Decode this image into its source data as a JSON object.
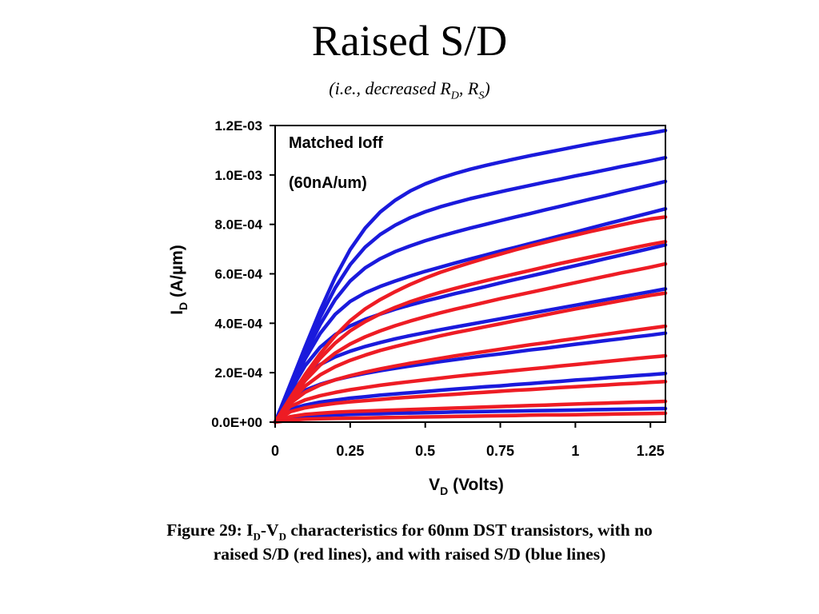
{
  "slide": {
    "title": "Raised S/D",
    "subtitle_prefix": "(i.e., decreased R",
    "subtitle_sub1": "D",
    "subtitle_mid": ", R",
    "subtitle_sub2": "S",
    "subtitle_suffix": ")"
  },
  "caption": {
    "p1": "Figure 29: I",
    "s1": "D",
    "p2": "-V",
    "s2": "D",
    "p3": " characteristics for 60nm DST transistors, with no raised S/D (red lines), and with raised S/D (blue lines)"
  },
  "colors": {
    "blue": "#1a1adc",
    "red": "#ee1c24"
  },
  "chart_data": {
    "type": "line",
    "xlabel": "V",
    "xlabel_sub": "D",
    "xlabel_suffix": " (Volts)",
    "ylabel": "I",
    "ylabel_sub": "D",
    "ylabel_suffix": " (A/µm)",
    "xlim": [
      0,
      1.3
    ],
    "ylim": [
      0,
      0.0012
    ],
    "x_ticks": [
      {
        "v": 0,
        "label": "0"
      },
      {
        "v": 0.25,
        "label": "0.25"
      },
      {
        "v": 0.5,
        "label": "0.5"
      },
      {
        "v": 0.75,
        "label": "0.75"
      },
      {
        "v": 1,
        "label": "1"
      },
      {
        "v": 1.25,
        "label": "1.25"
      }
    ],
    "y_ticks": [
      {
        "v": 0,
        "label": "0.0E+00"
      },
      {
        "v": 0.0002,
        "label": "2.0E-04"
      },
      {
        "v": 0.0004,
        "label": "4.0E-04"
      },
      {
        "v": 0.0006,
        "label": "6.0E-04"
      },
      {
        "v": 0.0008,
        "label": "8.0E-04"
      },
      {
        "v": 0.001,
        "label": "1.0E-03"
      },
      {
        "v": 0.0012,
        "label": "1.2E-03"
      }
    ],
    "annotations": [
      "Matched Ioff",
      "(60nA/um)"
    ],
    "x": [
      0,
      0.05,
      0.1,
      0.15,
      0.2,
      0.25,
      0.3,
      0.35,
      0.4,
      0.45,
      0.5,
      0.55,
      0.6,
      0.65,
      0.7,
      0.75,
      0.8,
      0.85,
      0.9,
      0.95,
      1.0,
      1.05,
      1.1,
      1.15,
      1.2,
      1.25,
      1.3
    ],
    "series": [
      {
        "group": "raised S/D",
        "color": "blue",
        "values": [
          0,
          0.000152,
          0.000304,
          0.000452,
          0.000586,
          0.000698,
          0.000785,
          0.00085,
          0.000898,
          0.000935,
          0.000964,
          0.000987,
          0.001006,
          0.001023,
          0.001038,
          0.001052,
          0.001065,
          0.001078,
          0.00109,
          0.001102,
          0.001114,
          0.001126,
          0.001137,
          0.001148,
          0.001159,
          0.001169,
          0.00118
        ]
      },
      {
        "group": "raised S/D",
        "color": "blue",
        "values": [
          0,
          0.000147,
          0.00029,
          0.000425,
          0.000543,
          0.000637,
          0.000708,
          0.000759,
          0.000797,
          0.000827,
          0.000851,
          0.000871,
          0.000888,
          0.000904,
          0.000918,
          0.000932,
          0.000945,
          0.000958,
          0.000971,
          0.000983,
          0.000996,
          0.001008,
          0.00102,
          0.001033,
          0.001045,
          0.001057,
          0.00107
        ]
      },
      {
        "group": "raised S/D",
        "color": "blue",
        "values": [
          0,
          0.000141,
          0.000275,
          0.000395,
          0.000496,
          0.000571,
          0.000624,
          0.000661,
          0.00069,
          0.000713,
          0.000734,
          0.000752,
          0.000769,
          0.000785,
          0.0008,
          0.000815,
          0.00083,
          0.000844,
          0.000859,
          0.000873,
          0.000888,
          0.000902,
          0.000916,
          0.000931,
          0.000945,
          0.000959,
          0.000974
        ]
      },
      {
        "group": "raised S/D",
        "color": "blue",
        "values": [
          0,
          0.000134,
          0.000256,
          0.000359,
          0.000436,
          0.000488,
          0.000523,
          0.000549,
          0.000571,
          0.000591,
          0.00061,
          0.000627,
          0.000644,
          0.00066,
          0.000676,
          0.000692,
          0.000707,
          0.000723,
          0.000738,
          0.000754,
          0.000769,
          0.000785,
          0.000801,
          0.000816,
          0.000832,
          0.000847,
          0.000863
        ]
      },
      {
        "group": "raised S/D",
        "color": "blue",
        "values": [
          0,
          0.000125,
          0.000228,
          0.000303,
          0.000354,
          0.000389,
          0.000416,
          0.000437,
          0.000457,
          0.000474,
          0.00049,
          0.000505,
          0.00052,
          0.000534,
          0.000548,
          0.000563,
          0.000577,
          0.000591,
          0.000605,
          0.000619,
          0.000633,
          0.000647,
          0.000661,
          0.000675,
          0.000689,
          0.000703,
          0.000717
        ]
      },
      {
        "group": "raised S/D",
        "color": "blue",
        "values": [
          0,
          0.000111,
          0.000187,
          0.000233,
          0.000264,
          0.000287,
          0.000306,
          0.000322,
          0.000337,
          0.00035,
          0.000362,
          0.000374,
          0.000385,
          0.000396,
          0.000407,
          0.000418,
          0.000429,
          0.00044,
          0.000451,
          0.000462,
          0.000473,
          0.000484,
          0.000495,
          0.000506,
          0.000517,
          0.000528,
          0.000539
        ]
      },
      {
        "group": "raised S/D",
        "color": "blue",
        "values": [
          0,
          8.7e-05,
          0.000129,
          0.000153,
          0.000171,
          0.000185,
          0.000197,
          0.000208,
          0.000218,
          0.000227,
          0.000236,
          0.000245,
          0.000253,
          0.000261,
          0.000269,
          0.000276,
          0.000284,
          0.000292,
          0.000299,
          0.000307,
          0.000315,
          0.000322,
          0.00033,
          0.000337,
          0.000345,
          0.000352,
          0.00036
        ]
      },
      {
        "group": "raised S/D",
        "color": "blue",
        "values": [
          0,
          5.2e-05,
          6.9e-05,
          8.1e-05,
          8.9e-05,
          9.7e-05,
          0.000103,
          0.000109,
          0.000114,
          0.000119,
          0.000124,
          0.000129,
          0.000134,
          0.000138,
          0.000143,
          0.000147,
          0.000152,
          0.000156,
          0.000161,
          0.000165,
          0.00017,
          0.000174,
          0.000179,
          0.000183,
          0.000188,
          0.000192,
          0.000197
        ]
      },
      {
        "group": "raised S/D",
        "color": "blue",
        "values": [
          0,
          1.8e-05,
          2.4e-05,
          2.7e-05,
          2.9e-05,
          3.1e-05,
          3.3e-05,
          3.4e-05,
          3.6e-05,
          3.7e-05,
          3.8e-05,
          3.9e-05,
          4.1e-05,
          4.2e-05,
          4.3e-05,
          4.4e-05,
          4.5e-05,
          4.6e-05,
          4.7e-05,
          4.8e-05,
          4.9e-05,
          5e-05,
          5.1e-05,
          5.2e-05,
          5.3e-05,
          5.4e-05,
          5.5e-05
        ]
      },
      {
        "group": "no raised S/D",
        "color": "red",
        "values": [
          0,
          9.8e-05,
          0.000192,
          0.000277,
          0.000349,
          0.00041,
          0.000458,
          0.000496,
          0.000528,
          0.000557,
          0.000583,
          0.000606,
          0.000626,
          0.000645,
          0.000663,
          0.00068,
          0.000697,
          0.000713,
          0.000728,
          0.000743,
          0.000757,
          0.000771,
          0.000784,
          0.000797,
          0.00081,
          0.000822,
          0.00083
        ]
      },
      {
        "group": "no raised S/D",
        "color": "red",
        "values": [
          0,
          9.5e-05,
          0.000182,
          0.000258,
          0.00032,
          0.000369,
          0.000407,
          0.000438,
          0.000464,
          0.000487,
          0.000507,
          0.000525,
          0.000541,
          0.000557,
          0.000572,
          0.000586,
          0.0006,
          0.000614,
          0.000628,
          0.000642,
          0.000655,
          0.000668,
          0.000681,
          0.000694,
          0.000707,
          0.000719,
          0.00073
        ]
      },
      {
        "group": "no raised S/D",
        "color": "red",
        "values": [
          0,
          9e-05,
          0.000168,
          0.000231,
          0.000279,
          0.000316,
          0.000345,
          0.000369,
          0.00039,
          0.000409,
          0.000426,
          0.000442,
          0.000457,
          0.000471,
          0.000485,
          0.000499,
          0.000512,
          0.000525,
          0.000538,
          0.000551,
          0.000564,
          0.000577,
          0.00059,
          0.000603,
          0.000615,
          0.000627,
          0.00064
        ]
      },
      {
        "group": "no raised S/D",
        "color": "red",
        "values": [
          0,
          8.4e-05,
          0.000146,
          0.000191,
          0.000224,
          0.00025,
          0.000271,
          0.00029,
          0.000306,
          0.000321,
          0.000335,
          0.000349,
          0.000362,
          0.000374,
          0.000386,
          0.000398,
          0.00041,
          0.000422,
          0.000434,
          0.000446,
          0.000458,
          0.000469,
          0.00048,
          0.000491,
          0.000502,
          0.000513,
          0.000522
        ]
      },
      {
        "group": "no raised S/D",
        "color": "red",
        "values": [
          0,
          7.6e-05,
          0.000121,
          0.00015,
          0.000171,
          0.000188,
          0.000202,
          0.000215,
          0.000227,
          0.000238,
          0.000248,
          0.000258,
          0.000268,
          0.000277,
          0.000286,
          0.000295,
          0.000304,
          0.000313,
          0.000321,
          0.00033,
          0.000338,
          0.000347,
          0.000355,
          0.000364,
          0.000372,
          0.00038,
          0.000388
        ]
      },
      {
        "group": "no raised S/D",
        "color": "red",
        "values": [
          0,
          6.3e-05,
          9e-05,
          0.000107,
          0.00012,
          0.000131,
          0.00014,
          0.000149,
          0.000157,
          0.000164,
          0.000171,
          0.000178,
          0.000185,
          0.000191,
          0.000197,
          0.000203,
          0.000209,
          0.000215,
          0.000221,
          0.000227,
          0.000233,
          0.000239,
          0.000245,
          0.000251,
          0.000257,
          0.000263,
          0.000268
        ]
      },
      {
        "group": "no raised S/D",
        "color": "red",
        "values": [
          0,
          4.2e-05,
          5.8e-05,
          6.8e-05,
          7.6e-05,
          8.2e-05,
          8.7e-05,
          9.2e-05,
          9.7e-05,
          0.000101,
          0.000105,
          0.000109,
          0.000113,
          0.000117,
          0.000121,
          0.000125,
          0.000129,
          0.000132,
          0.000136,
          0.00014,
          0.000143,
          0.000147,
          0.00015,
          0.000154,
          0.000157,
          0.000161,
          0.000164
        ]
      },
      {
        "group": "no raised S/D",
        "color": "red",
        "values": [
          0,
          2.2e-05,
          3.1e-05,
          3.6e-05,
          4e-05,
          4.3e-05,
          4.5e-05,
          4.7e-05,
          4.9e-05,
          5.1e-05,
          5.3e-05,
          5.5e-05,
          5.7e-05,
          5.9e-05,
          6.1e-05,
          6.3e-05,
          6.5e-05,
          6.7e-05,
          6.9e-05,
          7.1e-05,
          7.3e-05,
          7.5e-05,
          7.7e-05,
          7.9e-05,
          8.1e-05,
          8.2e-05,
          8.4e-05
        ]
      },
      {
        "group": "no raised S/D",
        "color": "red",
        "values": [
          0,
          8e-06,
          1.2e-05,
          1.4e-05,
          1.5e-05,
          1.6e-05,
          1.7e-05,
          1.8e-05,
          1.9e-05,
          2e-05,
          2.1e-05,
          2.2e-05,
          2.3e-05,
          2.4e-05,
          2.5e-05,
          2.6e-05,
          2.7e-05,
          2.8e-05,
          2.9e-05,
          2.9e-05,
          3e-05,
          3.1e-05,
          3.2e-05,
          3.3e-05,
          3.4e-05,
          3.5e-05,
          3.6e-05
        ]
      }
    ]
  }
}
